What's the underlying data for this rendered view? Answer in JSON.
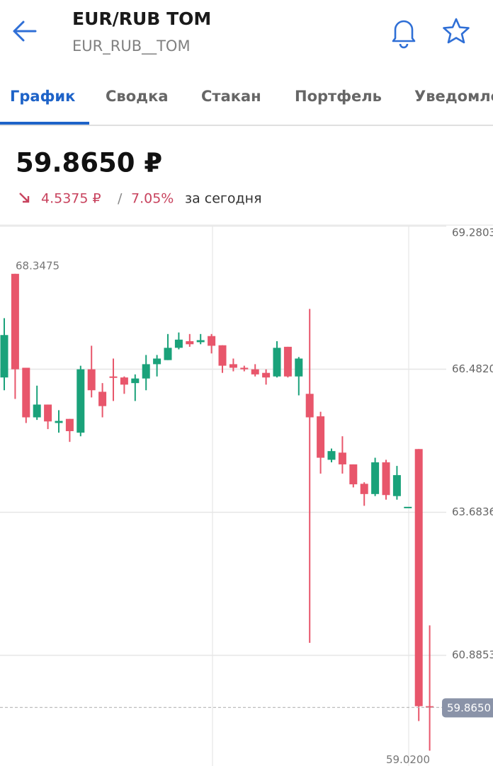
{
  "header": {
    "title": "EUR/RUB TOM",
    "subtitle": "EUR_RUB__TOM"
  },
  "tabs": [
    "График",
    "Сводка",
    "Стакан",
    "Портфель",
    "Уведомления"
  ],
  "quote": {
    "price": "59.8650 ₽",
    "change": "4.5375 ₽",
    "separator": "/",
    "change_percent": "7.05%",
    "period": "за сегодня"
  },
  "chart_data": {
    "type": "candlestick",
    "up_color": "#1aa27a",
    "down_color": "#e8566b",
    "open": [
      66.32,
      68.3475,
      66.51,
      65.54,
      65.79,
      65.43,
      65.51,
      65.24,
      66.48,
      66.04,
      66.34,
      66.32,
      66.21,
      66.3,
      66.58,
      66.66,
      66.9,
      67.03,
      67.01,
      67.13,
      66.95,
      66.58,
      66.51,
      66.48,
      66.41,
      66.34,
      66.92,
      66.34,
      66.0,
      65.56,
      64.71,
      64.85,
      64.62,
      64.24,
      64.04,
      64.66,
      64.0,
      63.79,
      64.92,
      59.89
    ],
    "high": [
      67.48,
      68.3475,
      66.51,
      66.16,
      65.79,
      65.68,
      65.51,
      66.55,
      66.94,
      66.21,
      66.69,
      66.34,
      66.38,
      66.76,
      66.76,
      67.17,
      67.2,
      67.17,
      67.17,
      67.17,
      66.95,
      66.69,
      66.55,
      66.58,
      66.48,
      67.03,
      66.92,
      66.72,
      67.66,
      65.65,
      64.93,
      65.17,
      64.62,
      64.27,
      64.75,
      64.71,
      64.59,
      63.79,
      64.92,
      61.47
    ],
    "low": [
      66.07,
      65.9,
      65.43,
      65.49,
      65.31,
      65.24,
      65.06,
      65.17,
      65.93,
      65.54,
      65.86,
      66.0,
      65.86,
      66.07,
      66.34,
      66.66,
      66.87,
      66.92,
      66.97,
      66.79,
      66.41,
      66.44,
      66.44,
      66.34,
      66.18,
      66.32,
      66.32,
      65.97,
      61.13,
      64.44,
      64.66,
      64.44,
      64.17,
      63.81,
      64.0,
      63.93,
      63.93,
      63.79,
      59.6,
      59.02
    ],
    "close": [
      67.15,
      66.48,
      65.54,
      65.79,
      65.46,
      65.47,
      65.27,
      66.48,
      66.07,
      65.76,
      66.32,
      66.18,
      66.3,
      66.58,
      66.69,
      66.9,
      67.06,
      66.97,
      67.05,
      66.94,
      66.55,
      66.51,
      66.48,
      66.38,
      66.32,
      66.9,
      66.34,
      66.69,
      65.54,
      64.75,
      64.88,
      64.62,
      64.23,
      64.04,
      64.66,
      64.02,
      64.41,
      63.79,
      59.89,
      59.865
    ],
    "ylim": [
      58.72,
      69.3
    ],
    "yticks": [
      69.2803,
      {
        "value": 66.482,
        "label": "66.4820"
      },
      63.6836,
      60.8853
    ],
    "grid": true,
    "max_label": 68.3475,
    "min_label": {
      "value": 59.02,
      "label": "59.0200"
    },
    "last_price": {
      "value": 59.865,
      "label": "59.8650"
    }
  }
}
